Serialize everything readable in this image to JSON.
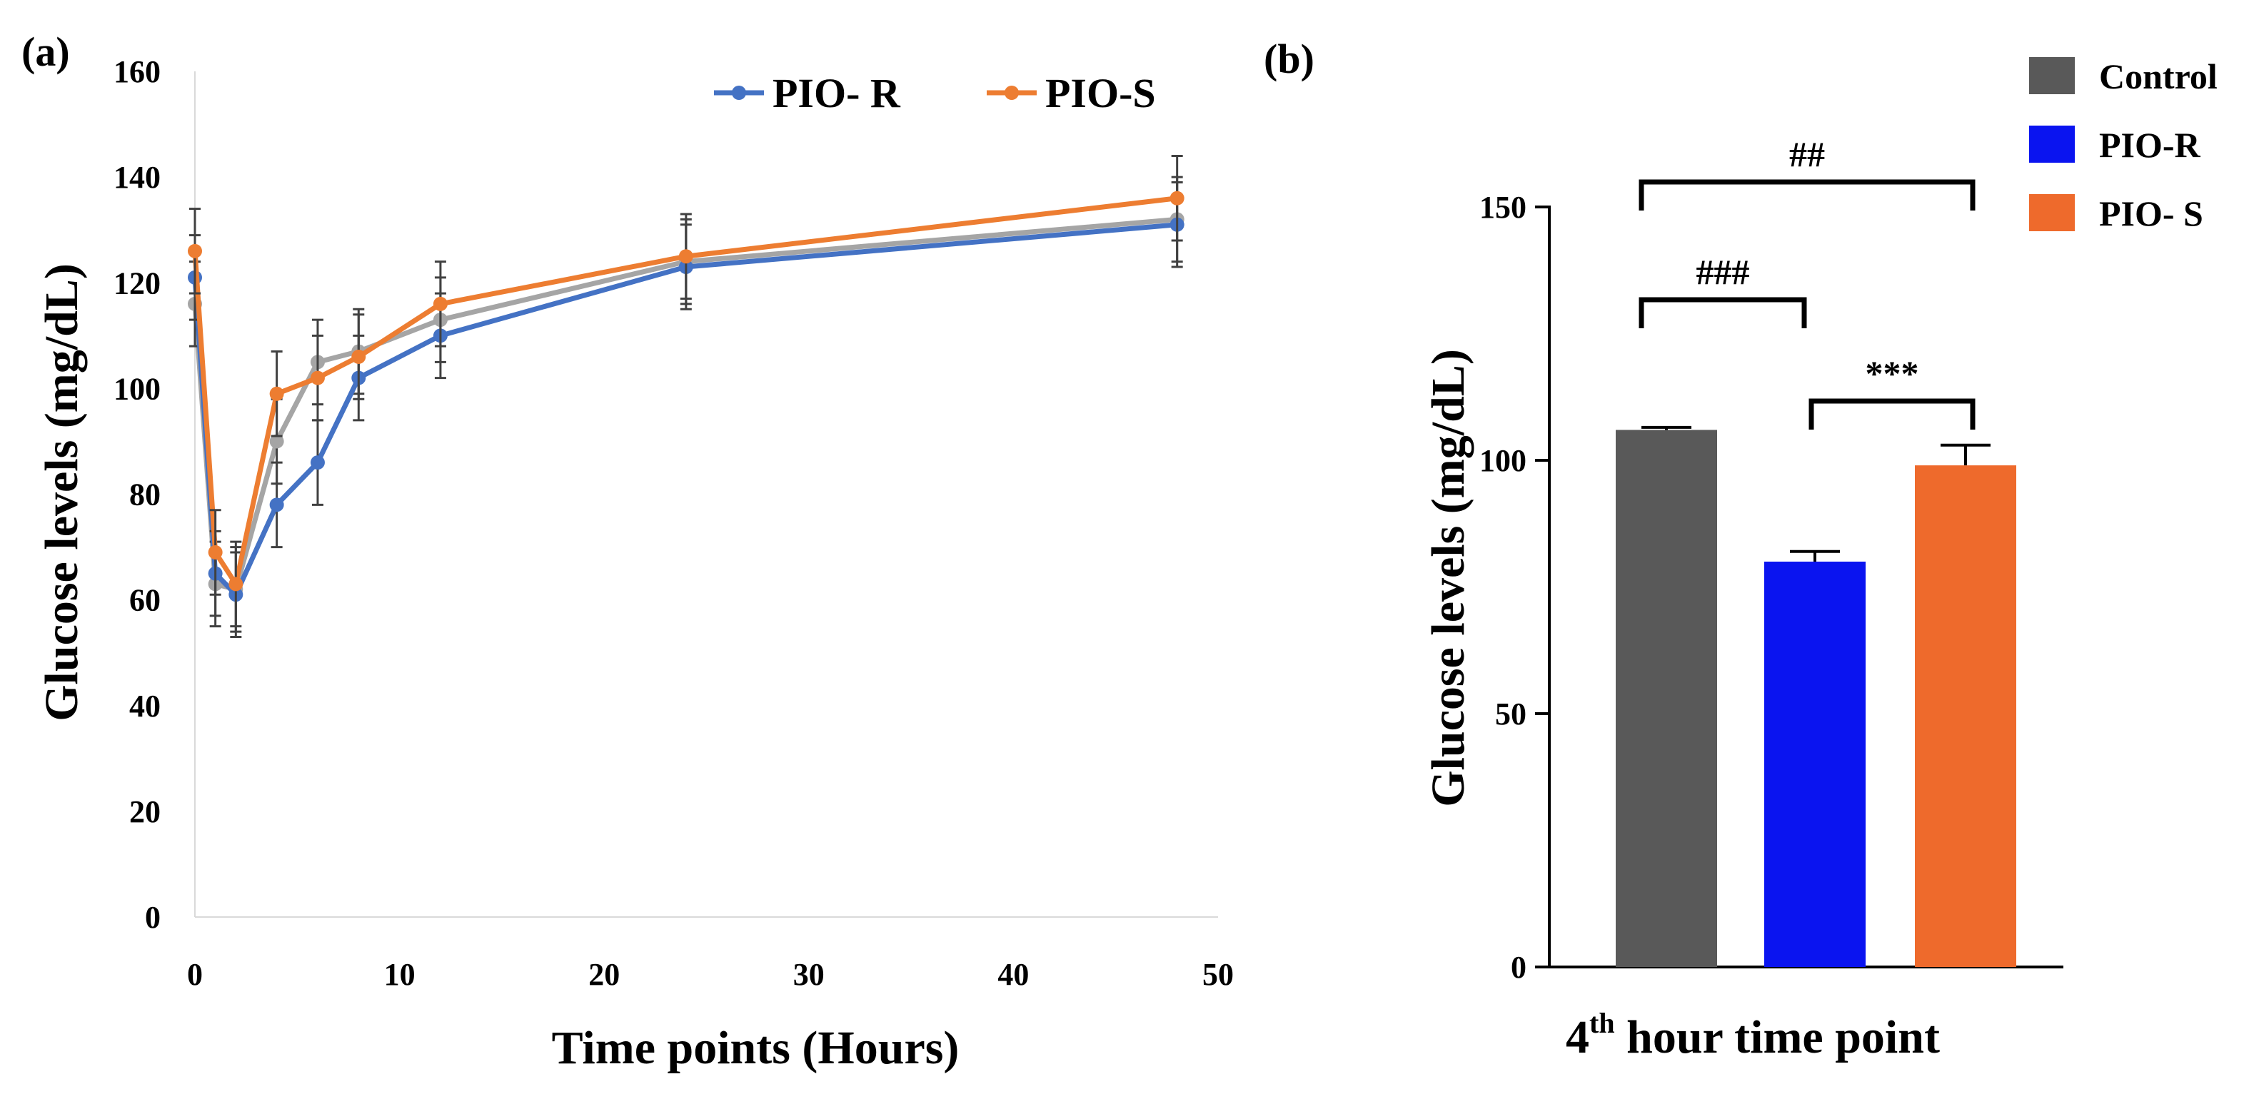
{
  "panel_labels": {
    "a": "(a)",
    "b": "(b)"
  },
  "chart_data": [
    {
      "type": "line",
      "panel": "(a)",
      "xlabel": "Time points (Hours)",
      "ylabel": "Glucose levels (mg/dL)",
      "xlim": [
        0,
        50
      ],
      "ylim": [
        0,
        160
      ],
      "xticks": [
        0,
        10,
        20,
        30,
        40,
        50
      ],
      "yticks": [
        0,
        20,
        40,
        60,
        80,
        100,
        120,
        140,
        160
      ],
      "x": [
        0,
        1,
        2,
        4,
        6,
        8,
        12,
        24,
        48
      ],
      "series": [
        {
          "name": "PIO- R",
          "color": "#4472C4",
          "in_legend": true,
          "values": [
            121,
            65,
            61,
            78,
            86,
            102,
            110,
            123,
            131
          ],
          "errors": [
            8,
            8,
            8,
            8,
            8,
            8,
            8,
            8,
            8
          ]
        },
        {
          "name": "PIO-S",
          "color": "#ED7D31",
          "in_legend": true,
          "values": [
            126,
            69,
            63,
            99,
            102,
            106,
            116,
            125,
            136
          ],
          "errors": [
            8,
            8,
            8,
            8,
            8,
            8,
            8,
            8,
            8
          ]
        },
        {
          "name": "Control",
          "color": "#A5A5A5",
          "in_legend": false,
          "values": [
            116,
            63,
            62,
            90,
            105,
            107,
            113,
            124,
            132
          ],
          "errors": [
            8,
            8,
            8,
            8,
            8,
            8,
            8,
            8,
            8
          ]
        }
      ],
      "legend_position": "top-right"
    },
    {
      "type": "bar",
      "panel": "(b)",
      "xlabel_main": "4",
      "xlabel_sup": "th",
      "xlabel_rest": " hour time point",
      "ylabel": "Glucose levels (mg/dL)",
      "ylim": [
        0,
        150
      ],
      "yticks": [
        0,
        50,
        100,
        150
      ],
      "categories": [
        "Control",
        "PIO-R",
        "PIO- S"
      ],
      "values": [
        106,
        80,
        99
      ],
      "errors": [
        0.5,
        2,
        4
      ],
      "colors": [
        "#595959",
        "#0A14F0",
        "#EE6A2C"
      ],
      "legend_position": "top-right",
      "significance": [
        {
          "from": 0,
          "to": 2,
          "label": "##"
        },
        {
          "from": 0,
          "to": 1,
          "label": "###"
        },
        {
          "from": 1,
          "to": 2,
          "label": "***"
        }
      ]
    }
  ]
}
